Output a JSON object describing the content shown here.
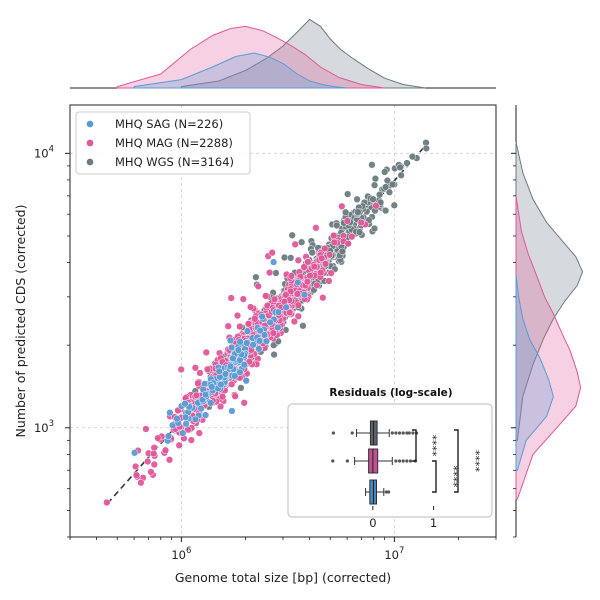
{
  "chart_data": [
    {
      "type": "scatter",
      "role": "main",
      "xlabel": "Genome total size [bp] (corrected)",
      "ylabel": "Number of predicted CDS (corrected)",
      "x_scale": "log",
      "y_scale": "log",
      "xlim": [
        300000,
        30000000
      ],
      "ylim": [
        400,
        15000
      ],
      "x_ticks": [
        {
          "value": 1000000,
          "base": "10",
          "exp": "6"
        },
        {
          "value": 10000000,
          "base": "10",
          "exp": "7"
        }
      ],
      "y_ticks": [
        {
          "value": 1000,
          "base": "10",
          "exp": "3"
        },
        {
          "value": 10000,
          "base": "10",
          "exp": "4"
        }
      ],
      "grid": true,
      "legend_position": "top-left",
      "reference_line": {
        "style": "dashed",
        "color": "#2e3440",
        "x": [
          450000,
          14500000
        ],
        "y": [
          530,
          11000
        ]
      },
      "series": [
        {
          "name": "MHQ SAG (N=226)",
          "color": "#5b9bd5",
          "n": 226
        },
        {
          "name": "MHQ MAG (N=2288)",
          "color": "#e0579a",
          "n": 2288
        },
        {
          "name": "MHQ WGS (N=3164)",
          "color": "#6b7b80",
          "n": 3164
        }
      ]
    },
    {
      "type": "area",
      "role": "top-marginal-density",
      "x_scale": "log",
      "series": [
        {
          "name": "MHQ SAG",
          "color": "#5b9bd5",
          "x": [
            600000,
            1000000,
            1400000,
            1800000,
            2200000,
            2600000,
            3000000,
            3500000,
            4000000,
            4600000,
            5200000,
            6000000
          ],
          "density": [
            0.02,
            0.12,
            0.3,
            0.45,
            0.5,
            0.44,
            0.35,
            0.2,
            0.1,
            0.05,
            0.02,
            0.0
          ]
        },
        {
          "name": "MHQ MAG",
          "color": "#e0579a",
          "x": [
            500000,
            800000,
            1100000,
            1400000,
            1700000,
            2000000,
            2400000,
            2800000,
            3300000,
            3800000,
            4500000,
            5500000,
            7000000,
            9000000
          ],
          "density": [
            0.02,
            0.2,
            0.55,
            0.75,
            0.85,
            0.88,
            0.82,
            0.72,
            0.6,
            0.48,
            0.3,
            0.15,
            0.05,
            0.0
          ]
        },
        {
          "name": "MHQ WGS",
          "color": "#6b7b80",
          "x": [
            1000000,
            1500000,
            2000000,
            2500000,
            3000000,
            3500000,
            4000000,
            4500000,
            5000000,
            5600000,
            6400000,
            7500000,
            9000000,
            11000000,
            14000000
          ],
          "density": [
            0.02,
            0.1,
            0.25,
            0.42,
            0.6,
            0.8,
            0.98,
            0.88,
            0.7,
            0.55,
            0.42,
            0.28,
            0.14,
            0.05,
            0.0
          ]
        }
      ]
    },
    {
      "type": "area",
      "role": "right-marginal-density",
      "y_scale": "log",
      "series": [
        {
          "name": "MHQ SAG",
          "color": "#5b9bd5",
          "y": [
            700,
            900,
            1100,
            1300,
            1500,
            1800,
            2100,
            2500,
            3000,
            3600
          ],
          "density": [
            0.02,
            0.15,
            0.45,
            0.55,
            0.48,
            0.35,
            0.2,
            0.1,
            0.04,
            0.0
          ]
        },
        {
          "name": "MHQ MAG",
          "color": "#e0579a",
          "y": [
            550,
            800,
            1000,
            1200,
            1400,
            1600,
            1900,
            2200,
            2600,
            3000,
            3600,
            4300,
            5200,
            7000
          ],
          "density": [
            0.02,
            0.25,
            0.6,
            0.88,
            0.95,
            0.9,
            0.8,
            0.68,
            0.55,
            0.42,
            0.3,
            0.18,
            0.08,
            0.0
          ]
        },
        {
          "name": "MHQ WGS",
          "color": "#6b7b80",
          "y": [
            900,
            1300,
            1700,
            2100,
            2500,
            2900,
            3300,
            3700,
            4200,
            4800,
            5600,
            6800,
            8500,
            11000
          ],
          "density": [
            0.02,
            0.1,
            0.25,
            0.4,
            0.55,
            0.72,
            0.9,
            0.98,
            0.88,
            0.68,
            0.45,
            0.25,
            0.1,
            0.0
          ]
        }
      ]
    },
    {
      "type": "box",
      "role": "inset-residuals",
      "title": "Residuals (log-scale)",
      "x_ticks": [
        "0",
        "1"
      ],
      "xlim": [
        -1.2,
        1.6
      ],
      "boxes": [
        {
          "name": "MHQ WGS",
          "color": "#5a6468",
          "q1": -0.04,
          "median": 0.01,
          "q3": 0.07,
          "whisker_low": -0.27,
          "whisker_high": 0.27,
          "outliers": [
            -0.65,
            -0.34,
            0.32,
            0.38,
            0.44,
            0.5,
            0.56,
            0.6,
            0.66,
            0.72
          ]
        },
        {
          "name": "MHQ MAG",
          "color": "#c0508f",
          "q1": -0.07,
          "median": 0.0,
          "q3": 0.08,
          "whisker_low": -0.3,
          "whisker_high": 0.32,
          "outliers": [
            -0.66,
            -0.42,
            0.38,
            0.44,
            0.5,
            0.56,
            0.62,
            0.7
          ]
        },
        {
          "name": "MHQ SAG",
          "color": "#4a86c0",
          "q1": -0.05,
          "median": 0.01,
          "q3": 0.06,
          "whisker_low": -0.12,
          "whisker_high": 0.18,
          "outliers": [
            0.22,
            0.26
          ]
        }
      ],
      "significance": [
        {
          "pair": [
            "MHQ WGS",
            "MHQ MAG"
          ],
          "label": "****"
        },
        {
          "pair": [
            "MHQ MAG",
            "MHQ SAG"
          ],
          "label": "****"
        },
        {
          "pair": [
            "MHQ WGS",
            "MHQ SAG"
          ],
          "label": "****"
        }
      ]
    }
  ]
}
